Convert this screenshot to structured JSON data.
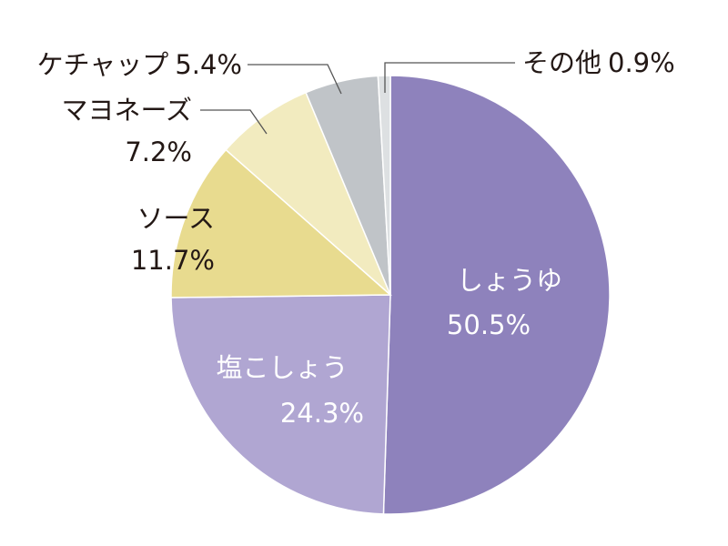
{
  "chart_data": {
    "type": "pie",
    "start_angle_deg": 0,
    "direction": "clockwise",
    "slices": [
      {
        "name": "しょうゆ",
        "value": 50.5,
        "value_label": "50.5%",
        "color": "#8e82bc"
      },
      {
        "name": "塩こしょう",
        "value": 24.3,
        "value_label": "24.3%",
        "color": "#b0a6d2"
      },
      {
        "name": "ソース",
        "value": 11.7,
        "value_label": "11.7%",
        "color": "#e8db8f"
      },
      {
        "name": "マヨネーズ",
        "value": 7.2,
        "value_label": "7.2%",
        "color": "#f2ebbf"
      },
      {
        "name": "ケチャップ",
        "value": 5.4,
        "value_label": "5.4%",
        "color": "#c0c4c8"
      },
      {
        "name": "その他",
        "value": 0.9,
        "value_label": "0.9%",
        "color": "#dde0e2"
      }
    ]
  }
}
